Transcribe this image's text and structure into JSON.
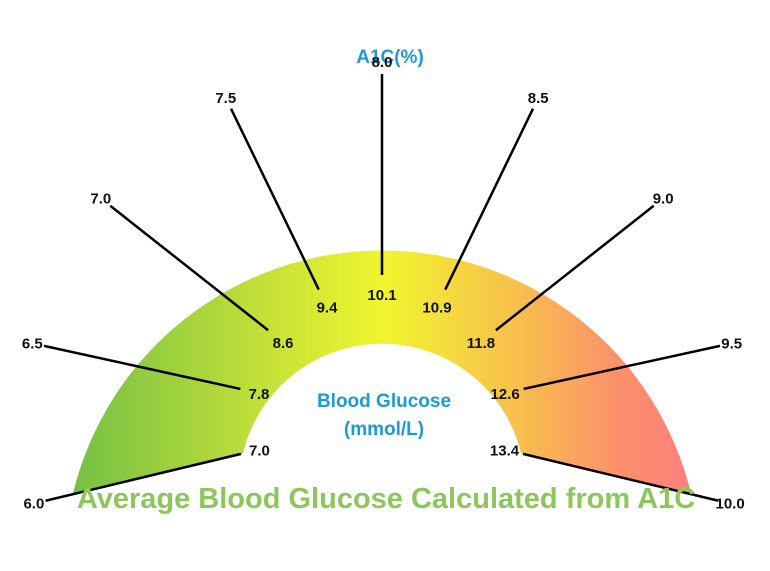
{
  "titles": {
    "a1c": "A1C(%)",
    "glucose_line1": "Blood Glucose",
    "glucose_line2": "(mmol/L)",
    "caption": "Average Blood Glucose Calculated from A1C"
  },
  "gauge": {
    "a1c_values": [
      "6.0",
      "6.5",
      "7.0",
      "7.5",
      "8.0",
      "8.5",
      "9.0",
      "9.5",
      "10.0"
    ],
    "glucose_values": [
      "7.0",
      "7.8",
      "8.6",
      "9.4",
      "10.1",
      "10.9",
      "11.8",
      "12.6",
      "13.4"
    ],
    "gradient_colors": [
      "#74bf44",
      "#b9dc3a",
      "#f1f52e",
      "#f8be4e",
      "#fb8f6c",
      "#ff7f7f"
    ]
  },
  "colors": {
    "title_blue": "#1b9bd8",
    "caption_green": "#8dc65a"
  }
}
